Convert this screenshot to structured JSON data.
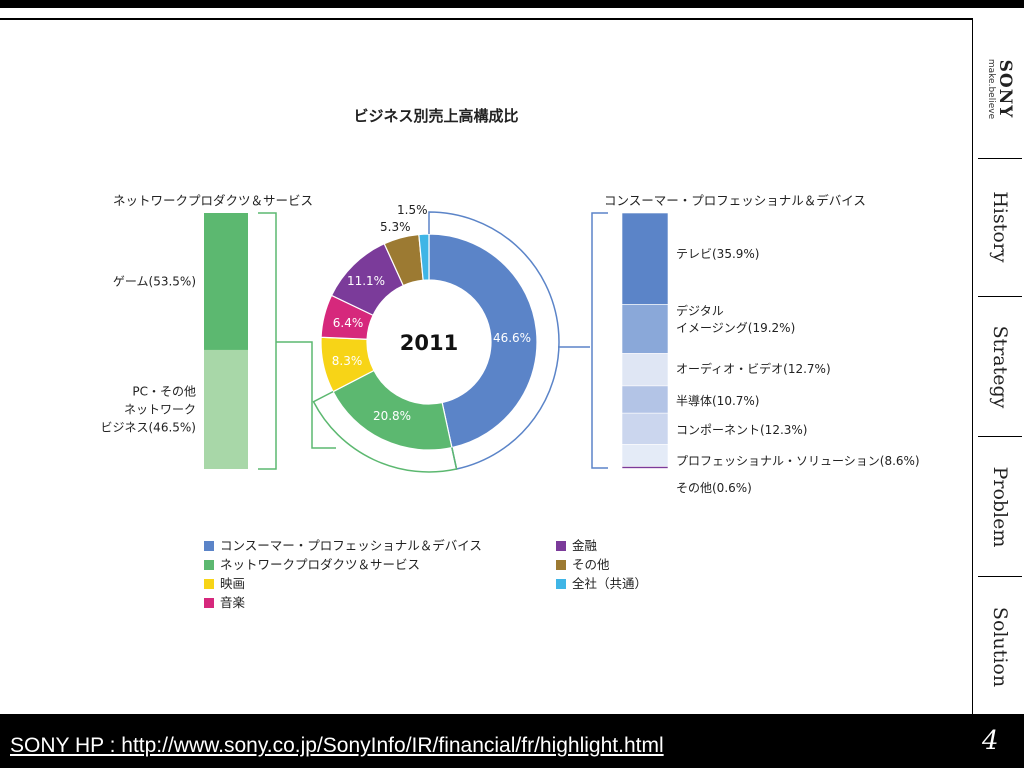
{
  "sidebar": {
    "logo": {
      "brand": "SONY",
      "tagline": "make.believe"
    },
    "tabs": [
      {
        "label": "History"
      },
      {
        "label": "Strategy"
      },
      {
        "label": "Problem"
      },
      {
        "label": "Solution"
      }
    ]
  },
  "footer": {
    "source_link": "SONY HP : http://www.sony.co.jp/SonyInfo/IR/financial/fr/highlight.html",
    "page_number": "4"
  },
  "colors": {
    "consumer": "#5b84c8",
    "network": "#5cb870",
    "film": "#f7d417",
    "music": "#d6287c",
    "finance": "#7b3b9a",
    "other": "#9c7a32",
    "corporate": "#3fb5e6"
  },
  "chart_data": {
    "title": "ビジネス別売上高構成比",
    "center_label": "2011",
    "donut": {
      "type": "pie",
      "slices": [
        {
          "name": "コンスーマー・プロフェッショナル＆デバイス",
          "value": 46.6,
          "label": "46.6%",
          "color": "#5b84c8"
        },
        {
          "name": "ネットワークプロダクツ＆サービス",
          "value": 20.8,
          "label": "20.8%",
          "color": "#5cb870"
        },
        {
          "name": "映画",
          "value": 8.3,
          "label": "8.3%",
          "color": "#f7d417"
        },
        {
          "name": "音楽",
          "value": 6.4,
          "label": "6.4%",
          "color": "#d6287c"
        },
        {
          "name": "金融",
          "value": 11.1,
          "label": "11.1%",
          "color": "#7b3b9a"
        },
        {
          "name": "その他",
          "value": 5.3,
          "label": "5.3%",
          "color": "#9c7a32"
        },
        {
          "name": "全社（共通）",
          "value": 1.5,
          "label": "1.5%",
          "color": "#3fb5e6"
        }
      ]
    },
    "left_breakdown": {
      "title": "ネットワークプロダクツ＆サービス",
      "segments": [
        {
          "label": "ゲーム(53.5%)",
          "value": 53.5,
          "color": "#5cb870"
        },
        {
          "label": "PC・その他 ネットワーク ビジネス(46.5%)",
          "lines": [
            "PC・その他",
            "ネットワーク",
            "ビジネス(46.5%)"
          ],
          "value": 46.5,
          "color": "#a8d7a8"
        }
      ]
    },
    "right_breakdown": {
      "title": "コンスーマー・プロフェッショナル＆デバイス",
      "segments": [
        {
          "label": "テレビ(35.9%)",
          "lines": [
            "テレビ(35.9%)"
          ],
          "value": 35.9,
          "color": "#5b84c8"
        },
        {
          "label": "デジタル イメージング(19.2%)",
          "lines": [
            "デジタル",
            "イメージング(19.2%)"
          ],
          "value": 19.2,
          "color": "#8aa8d9"
        },
        {
          "label": "オーディオ・ビデオ(12.7%)",
          "lines": [
            "オーディオ・ビデオ(12.7%)"
          ],
          "value": 12.7,
          "color": "#dfe6f4"
        },
        {
          "label": "半導体(10.7%)",
          "lines": [
            "半導体(10.7%)"
          ],
          "value": 10.7,
          "color": "#b3c4e6"
        },
        {
          "label": "コンポーネント(12.3%)",
          "lines": [
            "コンポーネント(12.3%)"
          ],
          "value": 12.3,
          "color": "#cbd6ee"
        },
        {
          "label": "プロフェッショナル・ソリューション(8.6%)",
          "lines": [
            "プロフェッショナル・ソリューション(8.6%)"
          ],
          "value": 8.6,
          "color": "#e4ebf7"
        },
        {
          "label": "その他(0.6%)",
          "lines": [
            "その他(0.6%)"
          ],
          "value": 0.6,
          "color": "#7b3b9a"
        }
      ]
    },
    "legend": [
      {
        "name": "コンスーマー・プロフェッショナル＆デバイス",
        "color": "#5b84c8"
      },
      {
        "name": "ネットワークプロダクツ＆サービス",
        "color": "#5cb870"
      },
      {
        "name": "映画",
        "color": "#f7d417"
      },
      {
        "name": "音楽",
        "color": "#d6287c"
      },
      {
        "name": "金融",
        "color": "#7b3b9a"
      },
      {
        "name": "その他",
        "color": "#9c7a32"
      },
      {
        "name": "全社（共通）",
        "color": "#3fb5e6"
      }
    ]
  }
}
